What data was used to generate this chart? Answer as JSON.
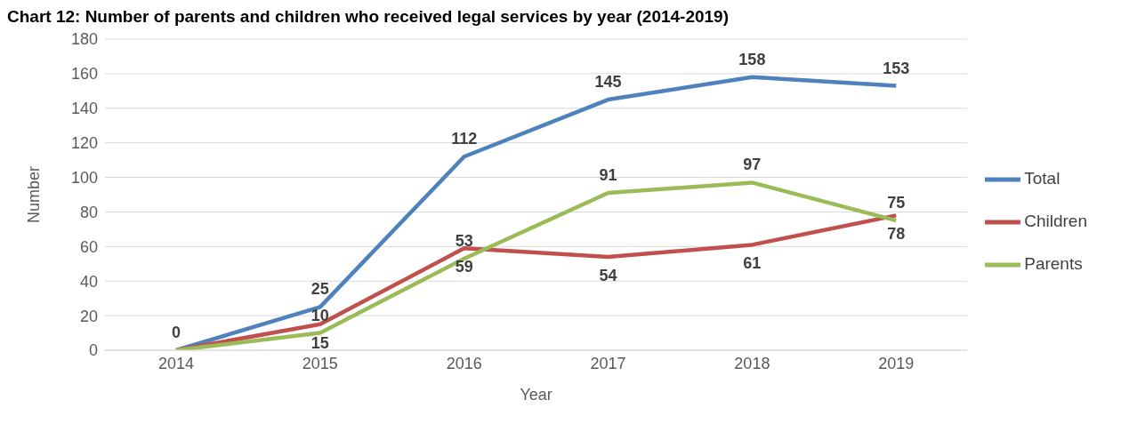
{
  "chart_data": {
    "type": "line",
    "title": "Chart 12: Number of parents and children who received legal services by year (2014-2019)",
    "xlabel": "Year",
    "ylabel": "Number",
    "categories": [
      "2014",
      "2015",
      "2016",
      "2017",
      "2018",
      "2019"
    ],
    "series": [
      {
        "name": "Total",
        "color": "#4f81bd",
        "values": [
          0,
          25,
          112,
          145,
          158,
          153
        ],
        "value_labels": [
          "0",
          "25",
          "112",
          "145",
          "158",
          "153"
        ]
      },
      {
        "name": "Children",
        "color": "#c0504d",
        "values": [
          0,
          15,
          59,
          54,
          61,
          78
        ],
        "value_labels": [
          null,
          "15",
          "59",
          "54",
          "61",
          "78"
        ]
      },
      {
        "name": "Parents",
        "color": "#9bbb59",
        "values": [
          0,
          10,
          53,
          91,
          97,
          75
        ],
        "value_labels": [
          null,
          "10",
          "53",
          "91",
          "97",
          "75"
        ]
      }
    ],
    "ylim": [
      0,
      180
    ],
    "yticks": [
      0,
      20,
      40,
      60,
      80,
      100,
      120,
      140,
      160,
      180
    ],
    "grid": "y",
    "legend": "right",
    "marker": "none",
    "line_style": "solid"
  }
}
